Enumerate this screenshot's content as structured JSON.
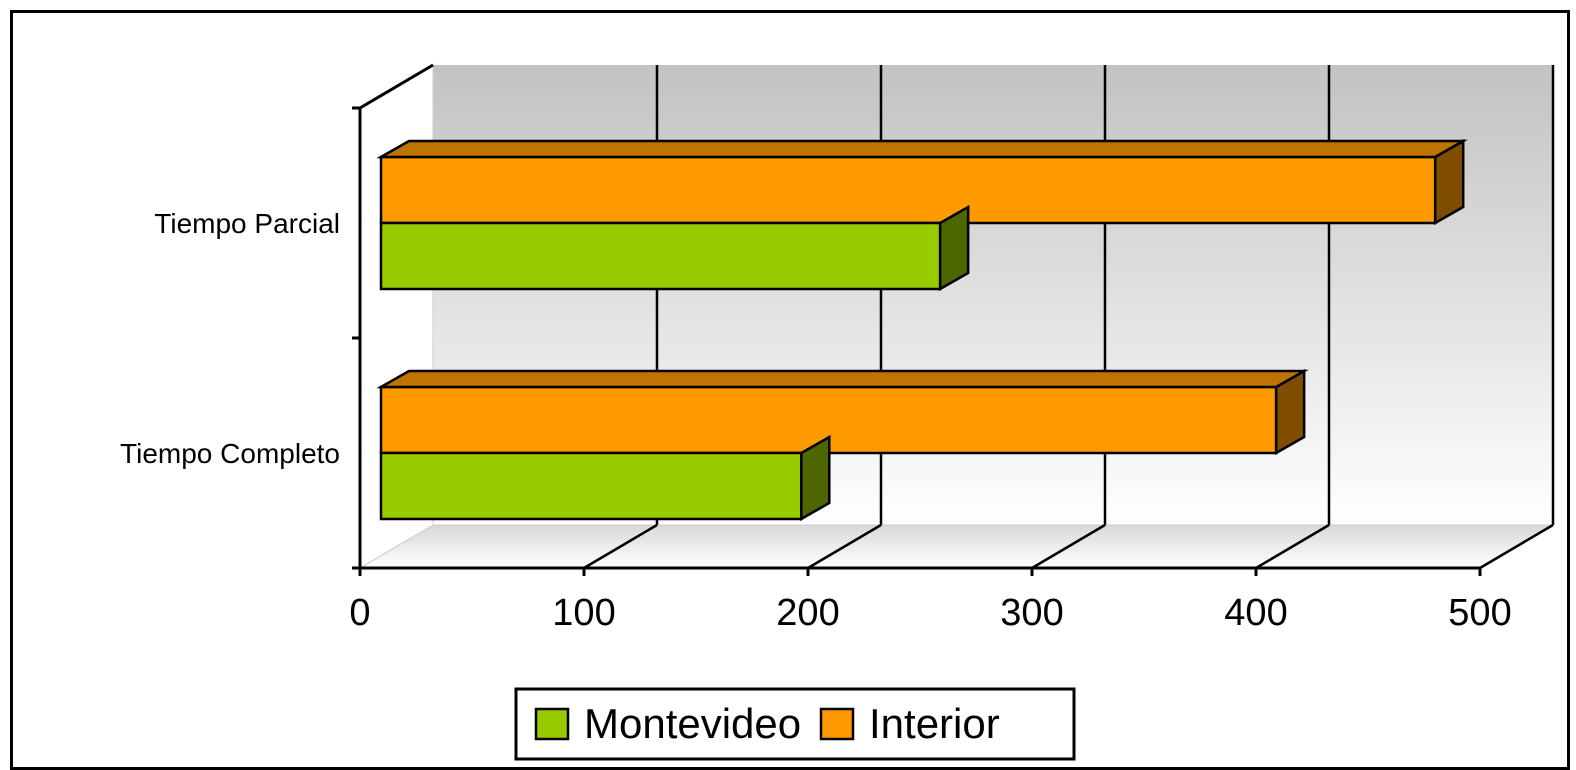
{
  "chart_data": {
    "type": "bar",
    "orientation": "horizontal",
    "style": "3d",
    "categories": [
      "Tiempo Completo",
      "Tiempo Parcial"
    ],
    "series": [
      {
        "name": "Montevideo",
        "values": [
          197,
          259
        ],
        "color": "#99CC00"
      },
      {
        "name": "Interior",
        "values": [
          409,
          480
        ],
        "color": "#FF9900"
      }
    ],
    "x_ticks": [
      "0",
      "100",
      "200",
      "300",
      "400",
      "500"
    ],
    "xlim": [
      0,
      500
    ],
    "grid": true,
    "legend_position": "bottom"
  }
}
